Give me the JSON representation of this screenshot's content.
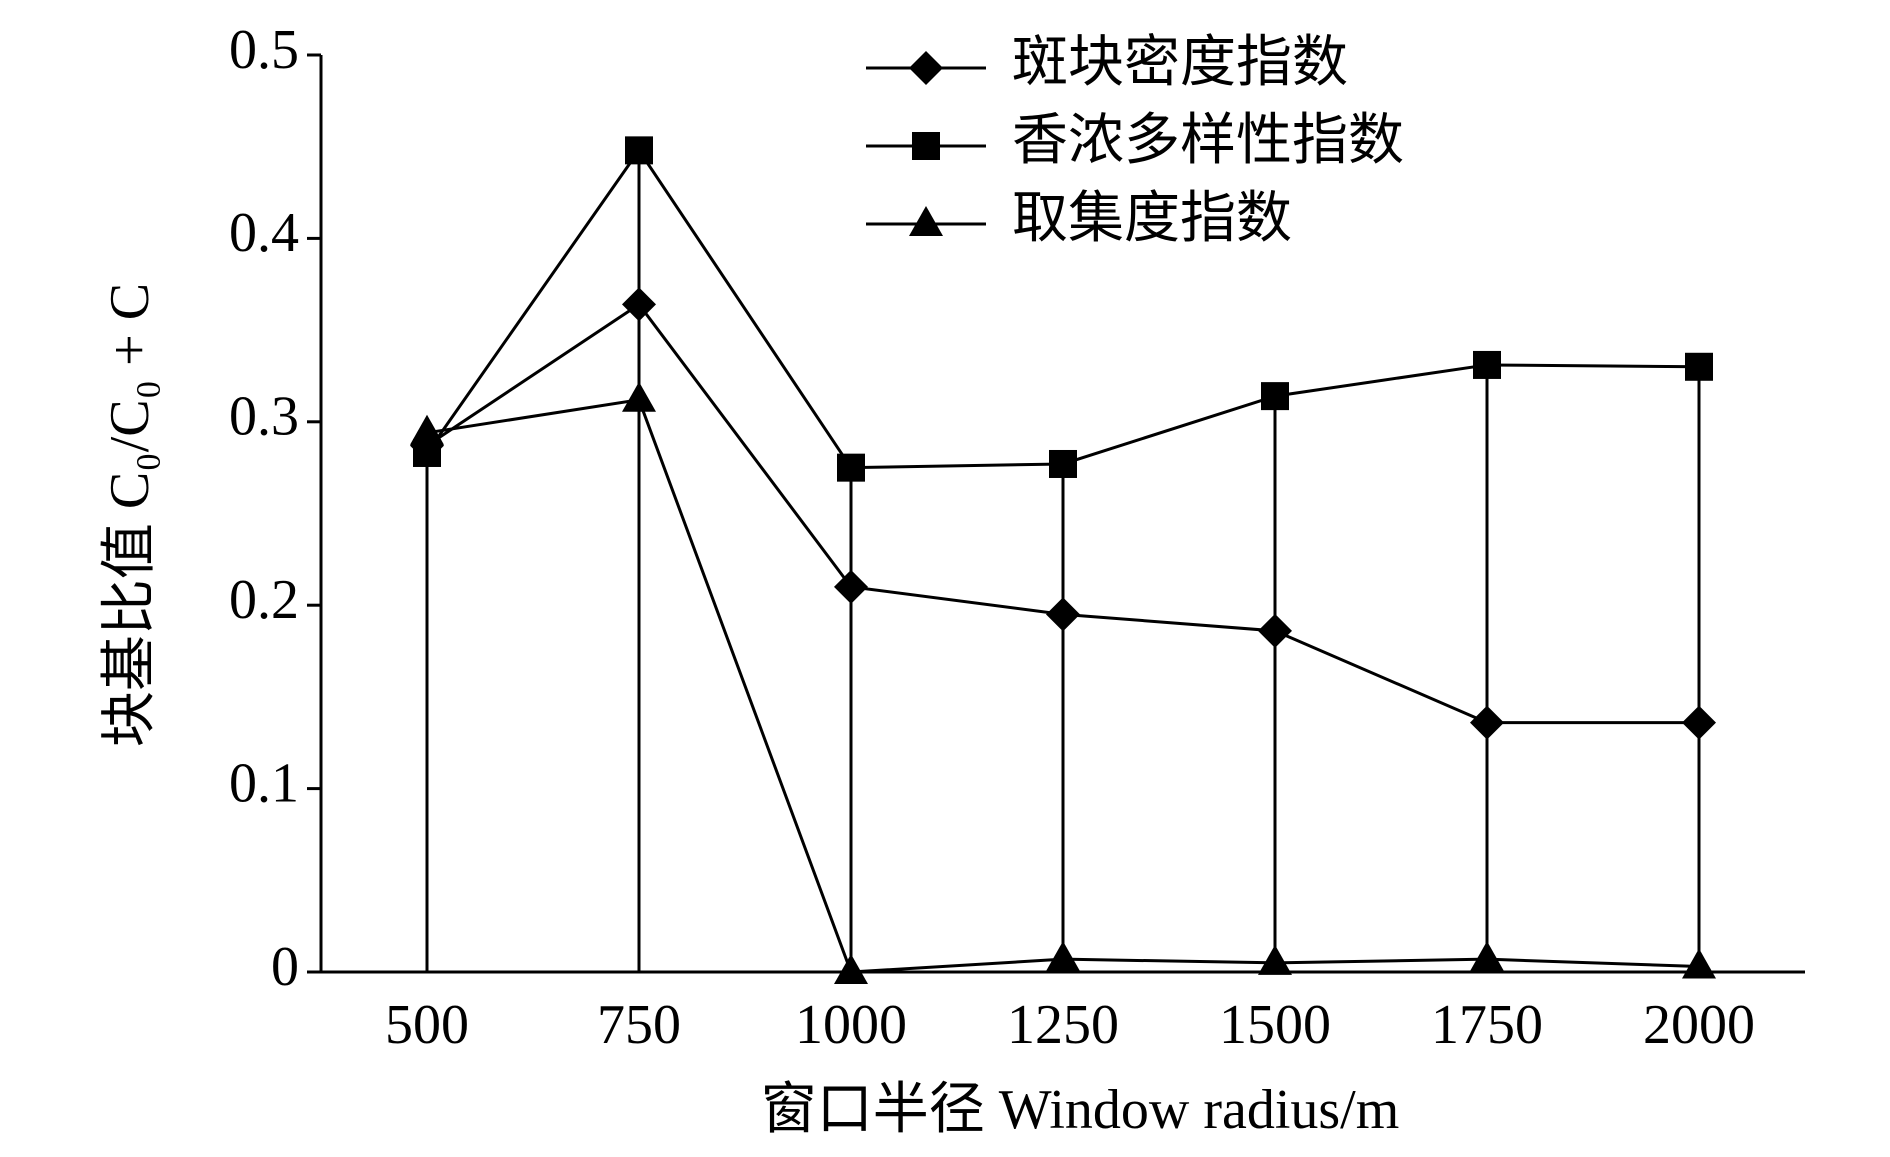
{
  "chart_data": {
    "type": "line",
    "x_label": "窗口半径 Window radius/m",
    "y_label": "块基比值 C₀/C₀ + C",
    "categories": [
      "500",
      "750",
      "1000",
      "1250",
      "1500",
      "1750",
      "2000"
    ],
    "series": [
      {
        "name": "斑块密度指数",
        "color": "#000000",
        "marker": "diamond",
        "values": [
          0.287,
          0.364,
          0.21,
          0.195,
          0.186,
          0.136,
          0.136
        ]
      },
      {
        "name": "香浓多样性指数",
        "color": "#000000",
        "marker": "square",
        "values": [
          0.283,
          0.448,
          0.275,
          0.277,
          0.314,
          0.331,
          0.33
        ]
      },
      {
        "name": "取集度指数",
        "color": "#000000",
        "marker": "triangle",
        "values": [
          0.294,
          0.312,
          0,
          0.007,
          0.005,
          0.007,
          0.003
        ]
      }
    ],
    "ylim": [
      0,
      0.5
    ],
    "yticks": [
      0,
      0.1,
      0.2,
      0.3,
      0.4,
      0.5
    ],
    "drop_lines": true
  }
}
